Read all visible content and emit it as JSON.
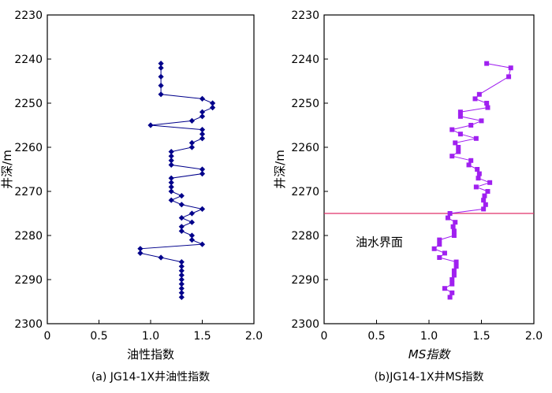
{
  "chart_data": [
    {
      "type": "line",
      "caption": "(a)  JG14-1X井油性指数",
      "xlabel": "油性指数",
      "ylabel": "井深/m",
      "xlim": [
        0,
        2.0
      ],
      "ylim": [
        2230,
        2300
      ],
      "y_inverted": true,
      "xticks": [
        "0",
        "0.5",
        "1.0",
        "1.5",
        "2.0"
      ],
      "yticks": [
        "2230",
        "2240",
        "2250",
        "2260",
        "2270",
        "2280",
        "2290",
        "2300"
      ],
      "grid": false,
      "color": "#00008b",
      "marker": "diamond",
      "points": [
        [
          1.1,
          2241
        ],
        [
          1.1,
          2242
        ],
        [
          1.1,
          2244
        ],
        [
          1.1,
          2246
        ],
        [
          1.1,
          2248
        ],
        [
          1.5,
          2249
        ],
        [
          1.6,
          2250
        ],
        [
          1.6,
          2251
        ],
        [
          1.5,
          2252
        ],
        [
          1.5,
          2253
        ],
        [
          1.4,
          2254
        ],
        [
          1.0,
          2255
        ],
        [
          1.5,
          2256
        ],
        [
          1.5,
          2257
        ],
        [
          1.5,
          2258
        ],
        [
          1.4,
          2259
        ],
        [
          1.4,
          2260
        ],
        [
          1.2,
          2261
        ],
        [
          1.2,
          2262
        ],
        [
          1.2,
          2263
        ],
        [
          1.2,
          2264
        ],
        [
          1.5,
          2265
        ],
        [
          1.5,
          2266
        ],
        [
          1.2,
          2267
        ],
        [
          1.2,
          2268
        ],
        [
          1.2,
          2269
        ],
        [
          1.2,
          2270
        ],
        [
          1.3,
          2271
        ],
        [
          1.2,
          2272
        ],
        [
          1.3,
          2273
        ],
        [
          1.5,
          2274
        ],
        [
          1.4,
          2275
        ],
        [
          1.3,
          2276
        ],
        [
          1.4,
          2277
        ],
        [
          1.3,
          2278
        ],
        [
          1.3,
          2279
        ],
        [
          1.4,
          2280
        ],
        [
          1.4,
          2281
        ],
        [
          1.5,
          2282
        ],
        [
          0.9,
          2283
        ],
        [
          0.9,
          2284
        ],
        [
          1.1,
          2285
        ],
        [
          1.3,
          2286
        ],
        [
          1.3,
          2287
        ],
        [
          1.3,
          2288
        ],
        [
          1.3,
          2289
        ],
        [
          1.3,
          2290
        ],
        [
          1.3,
          2291
        ],
        [
          1.3,
          2292
        ],
        [
          1.3,
          2293
        ],
        [
          1.3,
          2294
        ]
      ]
    },
    {
      "type": "line",
      "caption": "(b)JG14-1X井MS指数",
      "xlabel": "MS指数",
      "ylabel": "井深/m",
      "xlim": [
        0,
        2.0
      ],
      "ylim": [
        2230,
        2300
      ],
      "y_inverted": true,
      "xticks": [
        "0",
        "0.5",
        "1.0",
        "1.5",
        "2.0"
      ],
      "yticks": [
        "2230",
        "2240",
        "2250",
        "2260",
        "2270",
        "2280",
        "2290",
        "2300"
      ],
      "grid": false,
      "color": "#a020f0",
      "marker": "square",
      "points": [
        [
          1.55,
          2241
        ],
        [
          1.78,
          2242
        ],
        [
          1.76,
          2244
        ],
        [
          1.48,
          2248
        ],
        [
          1.44,
          2249
        ],
        [
          1.55,
          2250
        ],
        [
          1.56,
          2251
        ],
        [
          1.3,
          2252
        ],
        [
          1.3,
          2253
        ],
        [
          1.5,
          2254
        ],
        [
          1.4,
          2255
        ],
        [
          1.22,
          2256
        ],
        [
          1.3,
          2257
        ],
        [
          1.45,
          2258
        ],
        [
          1.25,
          2259
        ],
        [
          1.28,
          2260
        ],
        [
          1.28,
          2261
        ],
        [
          1.22,
          2262
        ],
        [
          1.4,
          2263
        ],
        [
          1.38,
          2264
        ],
        [
          1.46,
          2265
        ],
        [
          1.48,
          2266
        ],
        [
          1.47,
          2267
        ],
        [
          1.58,
          2268
        ],
        [
          1.45,
          2269
        ],
        [
          1.56,
          2270
        ],
        [
          1.53,
          2271
        ],
        [
          1.52,
          2272
        ],
        [
          1.54,
          2273
        ],
        [
          1.52,
          2274
        ],
        [
          1.2,
          2275
        ],
        [
          1.18,
          2276
        ],
        [
          1.25,
          2277
        ],
        [
          1.23,
          2278
        ],
        [
          1.24,
          2279
        ],
        [
          1.24,
          2280
        ],
        [
          1.1,
          2281
        ],
        [
          1.1,
          2282
        ],
        [
          1.05,
          2283
        ],
        [
          1.15,
          2284
        ],
        [
          1.1,
          2285
        ],
        [
          1.26,
          2286
        ],
        [
          1.26,
          2287
        ],
        [
          1.24,
          2288
        ],
        [
          1.24,
          2289
        ],
        [
          1.22,
          2290
        ],
        [
          1.22,
          2291
        ],
        [
          1.15,
          2292
        ],
        [
          1.22,
          2293
        ],
        [
          1.2,
          2294
        ]
      ],
      "reference_line": {
        "y": 2275,
        "color": "#e0306a",
        "label": "油水界面",
        "label_x": 0.3,
        "label_y": 2281.5
      }
    }
  ]
}
